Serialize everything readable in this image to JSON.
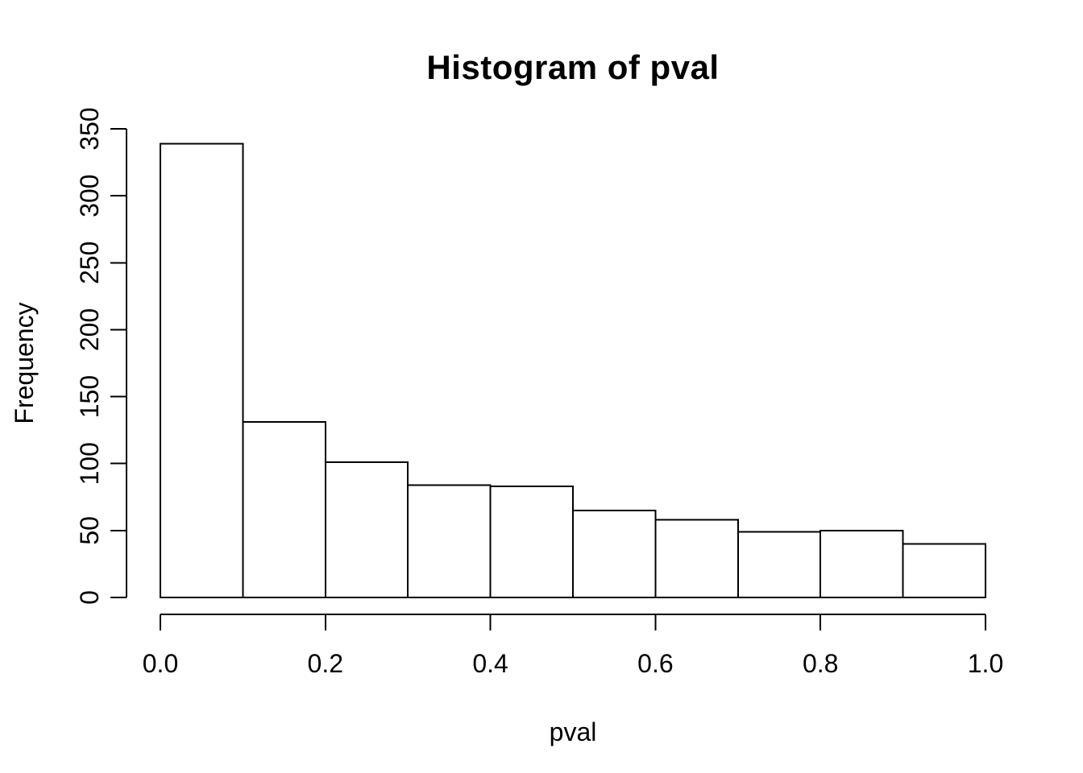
{
  "figure": {
    "title": "Histogram of pval",
    "xlabel": "pval",
    "ylabel": "Frequency",
    "background": "#ffffff"
  },
  "chart_data": {
    "type": "bar",
    "subtype": "histogram",
    "title": "Histogram of pval",
    "xlabel": "pval",
    "ylabel": "Frequency",
    "bin_edges": [
      0.0,
      0.1,
      0.2,
      0.3,
      0.4,
      0.5,
      0.6,
      0.7,
      0.8,
      0.9,
      1.0
    ],
    "categories": [
      "0.0-0.1",
      "0.1-0.2",
      "0.2-0.3",
      "0.3-0.4",
      "0.4-0.5",
      "0.5-0.6",
      "0.6-0.7",
      "0.7-0.8",
      "0.8-0.9",
      "0.9-1.0"
    ],
    "values": [
      339,
      131,
      101,
      84,
      83,
      65,
      58,
      49,
      50,
      40
    ],
    "total_count": 1000,
    "xlim": [
      0.0,
      1.0
    ],
    "ylim": [
      0,
      350
    ],
    "x_ticks": {
      "values": [
        0.0,
        0.2,
        0.4,
        0.6,
        0.8,
        1.0
      ],
      "labels": [
        "0.0",
        "0.2",
        "0.4",
        "0.6",
        "0.8",
        "1.0"
      ]
    },
    "y_ticks": {
      "values": [
        0,
        50,
        100,
        150,
        200,
        250,
        300,
        350
      ],
      "labels": [
        "0",
        "50",
        "100",
        "150",
        "200",
        "250",
        "300",
        "350"
      ]
    },
    "grid": false,
    "legend": null,
    "bar_fill": "#ffffff",
    "bar_border": "#000000",
    "axis_color": "#000000",
    "text_color": "#000000"
  }
}
